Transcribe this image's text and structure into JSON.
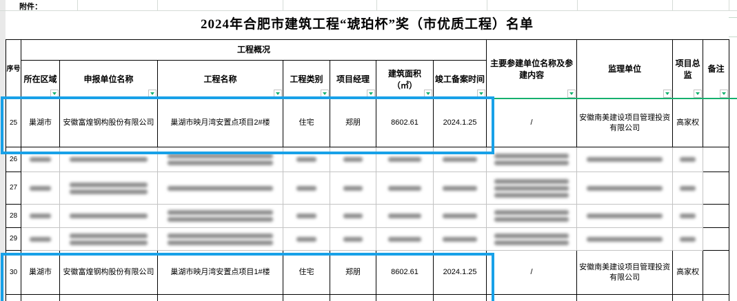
{
  "page": {
    "attachment_label": "附件：",
    "title": "2024年合肥市建筑工程“琥珀杯”奖（市优质工程）名单"
  },
  "colors": {
    "highlight_blue": "#18A1E8",
    "filter_green": "#14B06E"
  },
  "table": {
    "group_header": "工程概况",
    "columns": [
      "序号",
      "所在区域",
      "申报单位名称",
      "工程名称",
      "工程类别",
      "项目经理",
      "建筑面积（㎡）",
      "竣工备案时间",
      "主要参建单位名称及参建内容",
      "监理单位",
      "项目总监",
      "备注"
    ],
    "rows": [
      {
        "no": "25",
        "redacted": false,
        "highlighted": true,
        "cells": [
          "巢湖市",
          "安徽富煌钢构股份有限公司",
          "巢湖市映月湾安置点项目2#楼",
          "住宅",
          "郑朋",
          "8602.61",
          "2024.1.25",
          "/",
          "安徽南美建设项目管理投资有限公司",
          "高家权",
          ""
        ]
      },
      {
        "no": "26",
        "redacted": true,
        "highlighted": false,
        "cells": [
          "",
          "",
          "",
          "",
          "",
          "",
          "",
          "",
          "",
          "",
          ""
        ]
      },
      {
        "no": "27",
        "redacted": true,
        "highlighted": false,
        "cells": [
          "",
          "",
          "",
          "",
          "",
          "",
          "",
          "",
          "",
          "",
          ""
        ]
      },
      {
        "no": "28",
        "redacted": true,
        "highlighted": false,
        "cells": [
          "",
          "",
          "",
          "",
          "",
          "",
          "",
          "",
          "",
          "",
          ""
        ]
      },
      {
        "no": "29",
        "redacted": true,
        "highlighted": false,
        "cells": [
          "",
          "",
          "",
          "",
          "",
          "",
          "",
          "",
          "",
          "",
          ""
        ]
      },
      {
        "no": "30",
        "redacted": false,
        "highlighted": true,
        "cells": [
          "巢湖市",
          "安徽富煌钢构股份有限公司",
          "巢湖市映月湾安置点项目1#楼",
          "住宅",
          "郑朋",
          "8602.61",
          "2024.1.25",
          "/",
          "安徽南美建设项目管理投资有限公司",
          "高家权",
          ""
        ]
      }
    ]
  }
}
